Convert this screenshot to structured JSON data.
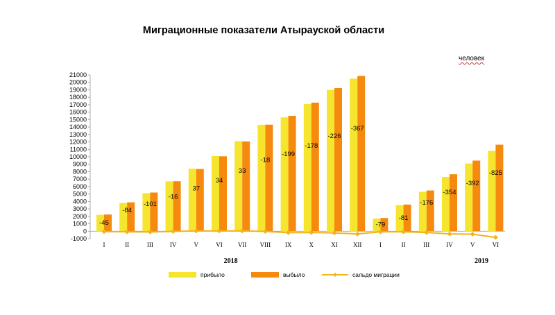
{
  "chart_data": {
    "type": "bar",
    "title": "Миграционные показатели Атырауской области",
    "unit": "человек",
    "ylim": [
      -1000,
      21000
    ],
    "yticks": [
      -1000,
      0,
      1000,
      2000,
      3000,
      4000,
      5000,
      6000,
      7000,
      8000,
      9000,
      10000,
      11000,
      12000,
      13000,
      14000,
      15000,
      16000,
      17000,
      18000,
      19000,
      20000,
      21000
    ],
    "categories": [
      "I",
      "II",
      "III",
      "IV",
      "V",
      "VI",
      "VII",
      "VIII",
      "IX",
      "X",
      "XI",
      "XII",
      "I",
      "II",
      "III",
      "IV",
      "V",
      "VI"
    ],
    "year_groups": [
      {
        "label": "2018",
        "start": 0,
        "end": 11
      },
      {
        "label": "2019",
        "start": 12,
        "end": 17
      }
    ],
    "series": [
      {
        "name": "прибыло",
        "type": "bar",
        "color": "#F5E52E",
        "values": [
          2200,
          3800,
          5100,
          6700,
          8400,
          10100,
          12100,
          14300,
          15300,
          17100,
          19000,
          20500,
          1700,
          3500,
          5300,
          7300,
          9100,
          10800
        ]
      },
      {
        "name": "выбыло",
        "type": "bar",
        "color": "#F58A0E",
        "values": [
          2245,
          3884,
          5201,
          6716,
          8363,
          10066,
          12067,
          14318,
          15499,
          17278,
          19226,
          20867,
          1779,
          3581,
          5476,
          7654,
          9492,
          11625
        ]
      },
      {
        "name": "сальдо миграции",
        "type": "line",
        "color": "#F2B417",
        "values": [
          -45,
          -84,
          -101,
          -16,
          37,
          34,
          33,
          -18,
          -199,
          -178,
          -226,
          -367,
          -79,
          -81,
          -176,
          -354,
          -392,
          -825
        ]
      }
    ],
    "data_labels": [
      "-45",
      "-84",
      "-101",
      "-16",
      "37",
      "34",
      "33",
      "-18",
      "-199",
      "-178",
      "-226",
      "-367",
      "-79",
      "-81",
      "-176",
      "-354",
      "-392",
      "-825"
    ],
    "legend_position": "bottom",
    "grid": false
  }
}
